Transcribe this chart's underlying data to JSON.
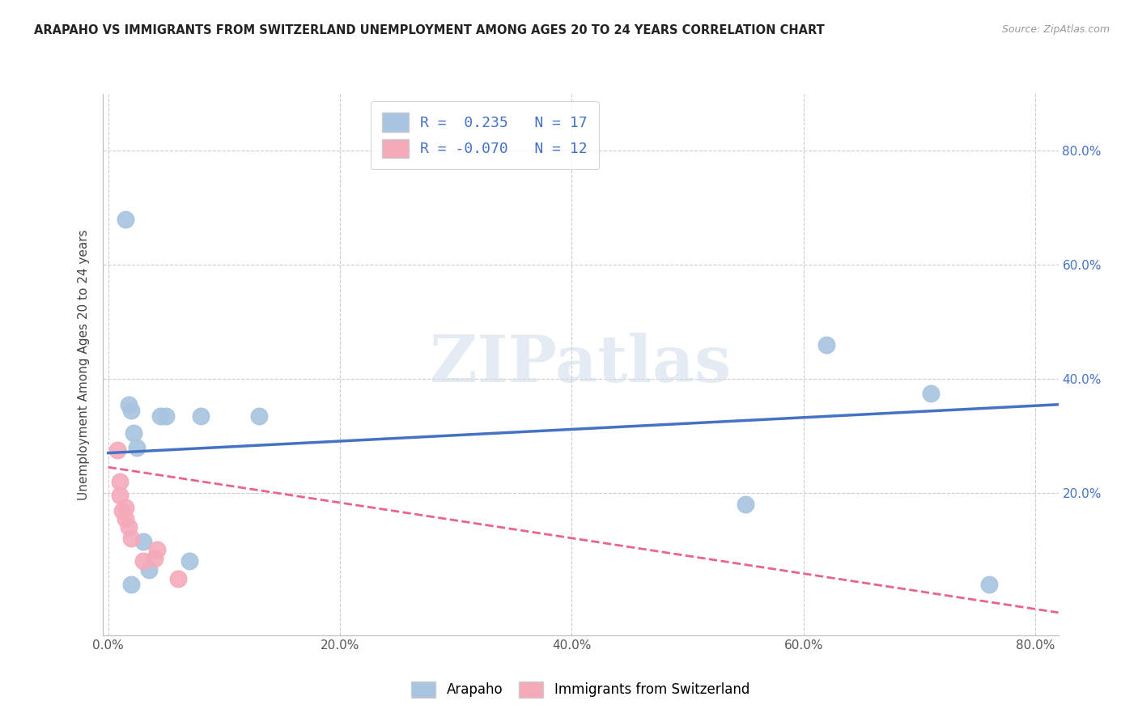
{
  "title": "ARAPAHO VS IMMIGRANTS FROM SWITZERLAND UNEMPLOYMENT AMONG AGES 20 TO 24 YEARS CORRELATION CHART",
  "source": "Source: ZipAtlas.com",
  "ylabel": "Unemployment Among Ages 20 to 24 years",
  "xlim": [
    -0.005,
    0.82
  ],
  "ylim": [
    -0.05,
    0.9
  ],
  "xticks": [
    0.0,
    0.2,
    0.4,
    0.6,
    0.8
  ],
  "xtick_labels": [
    "0.0%",
    "20.0%",
    "40.0%",
    "60.0%",
    "80.0%"
  ],
  "ytick_positions": [
    0.2,
    0.4,
    0.6,
    0.8
  ],
  "ytick_labels": [
    "20.0%",
    "40.0%",
    "60.0%",
    "80.0%"
  ],
  "blue_scatter_x": [
    0.015,
    0.018,
    0.02,
    0.022,
    0.025,
    0.03,
    0.035,
    0.045,
    0.05,
    0.02,
    0.07,
    0.08,
    0.13,
    0.55,
    0.62,
    0.71,
    0.76
  ],
  "blue_scatter_y": [
    0.68,
    0.355,
    0.345,
    0.305,
    0.28,
    0.115,
    0.065,
    0.335,
    0.335,
    0.04,
    0.08,
    0.335,
    0.335,
    0.18,
    0.46,
    0.375,
    0.04
  ],
  "pink_scatter_x": [
    0.008,
    0.01,
    0.01,
    0.012,
    0.015,
    0.015,
    0.018,
    0.02,
    0.03,
    0.04,
    0.042,
    0.06
  ],
  "pink_scatter_y": [
    0.275,
    0.22,
    0.195,
    0.168,
    0.175,
    0.155,
    0.14,
    0.12,
    0.08,
    0.085,
    0.1,
    0.05
  ],
  "blue_R": 0.235,
  "blue_N": 17,
  "pink_R": -0.07,
  "pink_N": 12,
  "blue_line_color": "#4472C4",
  "pink_line_color": "#E8648A",
  "blue_scatter_color": "#A8C4E0",
  "pink_scatter_color": "#F5AABA",
  "regression_blue_x0": 0.0,
  "regression_blue_x1": 0.82,
  "regression_blue_y0": 0.27,
  "regression_blue_y1": 0.355,
  "regression_pink_x0": 0.0,
  "regression_pink_x1": 0.82,
  "regression_pink_y0": 0.245,
  "regression_pink_y1": -0.01,
  "background_color": "#ffffff",
  "grid_color": "#cccccc",
  "watermark_text": "ZIPatlas",
  "watermark_color": "#d0dce8"
}
